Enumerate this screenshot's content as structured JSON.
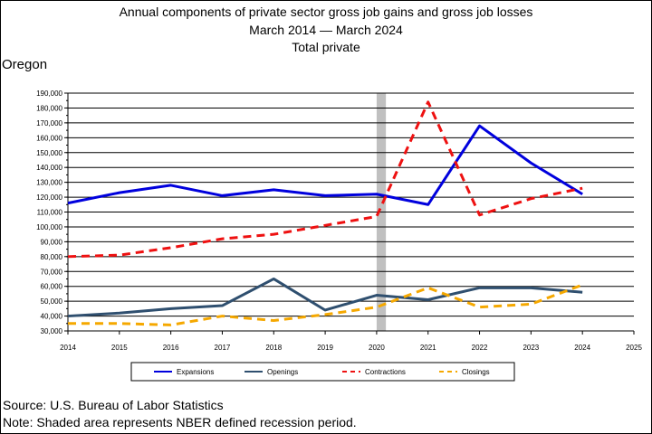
{
  "titles": {
    "line1": "Annual components of private sector gross job gains and gross job losses",
    "line2": "March 2014 — March 2024",
    "line3": "Total private"
  },
  "region": "Oregon",
  "source": "Source: U.S. Bureau of Labor Statistics",
  "note": "Note: Shaded area represents NBER defined recession period.",
  "chart_data": {
    "type": "line",
    "x_ticks": [
      "2014",
      "2015",
      "2016",
      "2017",
      "2018",
      "2019",
      "2020",
      "2021",
      "2022",
      "2023",
      "2024",
      "2025"
    ],
    "xlim": [
      2014,
      2025
    ],
    "ylim": [
      30000,
      190000
    ],
    "y_ticks": [
      "30,000",
      "40,000",
      "50,000",
      "60,000",
      "70,000",
      "80,000",
      "90,000",
      "100,000",
      "110,000",
      "120,000",
      "130,000",
      "140,000",
      "150,000",
      "160,000",
      "170,000",
      "180,000",
      "190,000"
    ],
    "recession": [
      2020,
      2020.18
    ],
    "grid": "horizontal",
    "legend_position": "bottom",
    "series": [
      {
        "name": "Expansions",
        "color": "#0000dd",
        "dash": "solid",
        "x": [
          2014,
          2015,
          2016,
          2017,
          2018,
          2019,
          2020,
          2021,
          2022,
          2023,
          2024
        ],
        "values": [
          116000,
          123000,
          128000,
          121000,
          125000,
          121000,
          122000,
          115000,
          168000,
          143000,
          122000
        ]
      },
      {
        "name": "Openings",
        "color": "#2f4f6f",
        "dash": "solid",
        "x": [
          2014,
          2015,
          2016,
          2017,
          2018,
          2019,
          2020,
          2021,
          2022,
          2023,
          2024
        ],
        "values": [
          40000,
          42000,
          45000,
          47000,
          65000,
          44000,
          54000,
          51000,
          59000,
          59000,
          56000
        ]
      },
      {
        "name": "Contractions",
        "color": "#ee1111",
        "dash": "dashed",
        "x": [
          2014,
          2015,
          2016,
          2017,
          2018,
          2019,
          2020,
          2021,
          2022,
          2023,
          2024
        ],
        "values": [
          80000,
          81000,
          86000,
          92000,
          95000,
          101000,
          107000,
          184000,
          108000,
          119000,
          126000
        ]
      },
      {
        "name": "Closings",
        "color": "#f5a800",
        "dash": "dashed",
        "x": [
          2014,
          2015,
          2016,
          2017,
          2018,
          2019,
          2020,
          2021,
          2022,
          2023,
          2024
        ],
        "values": [
          35000,
          35000,
          34000,
          40000,
          37000,
          41000,
          46000,
          59000,
          46000,
          48000,
          61000
        ]
      }
    ]
  }
}
